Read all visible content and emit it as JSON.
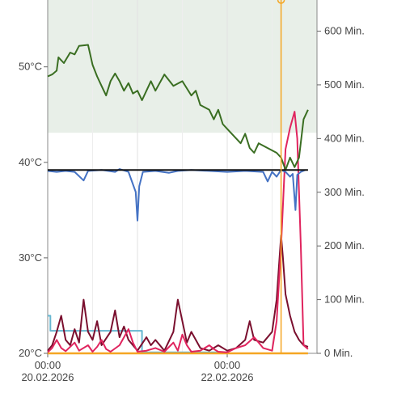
{
  "chart_data": {
    "type": "line",
    "left_axis": {
      "unit": "°C",
      "ylim": [
        20,
        57
      ],
      "ticks": [
        20,
        30,
        40,
        50
      ],
      "tick_labels": [
        "20°C",
        "30°C",
        "40°C",
        "50°C"
      ]
    },
    "right_axis": {
      "unit": "Min.",
      "ylim": [
        0,
        658
      ],
      "ticks": [
        0,
        100,
        200,
        300,
        400,
        500,
        600
      ],
      "tick_labels": [
        "0 Min.",
        "100 Min.",
        "200 Min.",
        "300 Min.",
        "400 Min.",
        "500 Min.",
        "600 Min."
      ]
    },
    "x_axis": {
      "range_days": [
        0,
        3
      ],
      "ticks": [
        0,
        2
      ],
      "tick_labels": [
        [
          "00:00",
          "20.02.2026"
        ],
        [
          "00:00",
          "22.02.2026"
        ]
      ]
    },
    "grid": true,
    "shaded_band": {
      "axis": "left",
      "from": 43.1,
      "to": 57,
      "color": "#e8efe8"
    },
    "reference_line": {
      "axis": "left",
      "value": 39.2,
      "color": "#111111"
    },
    "current_time_marker": {
      "x": 2.6,
      "color": "#f5a623"
    },
    "colors": {
      "temperature": "#4472c4",
      "green_series": "#3a6e22",
      "crimson_series": "#e0245e",
      "maroon_series": "#7a0f2e",
      "light_blue_series": "#67b7d1",
      "orange_series": "#f5a623"
    },
    "series": [
      {
        "axis": "left",
        "color_key": "temperature",
        "points": [
          [
            0,
            39.1
          ],
          [
            0.1,
            39.0
          ],
          [
            0.2,
            39.1
          ],
          [
            0.3,
            39.0
          ],
          [
            0.4,
            38.1
          ],
          [
            0.45,
            39.1
          ],
          [
            0.6,
            39.2
          ],
          [
            0.75,
            39.0
          ],
          [
            0.8,
            39.3
          ],
          [
            0.9,
            39.0
          ],
          [
            0.98,
            36.9
          ],
          [
            1.0,
            33.9
          ],
          [
            1.02,
            37.5
          ],
          [
            1.06,
            39.0
          ],
          [
            1.2,
            39.1
          ],
          [
            1.35,
            38.9
          ],
          [
            1.45,
            39.1
          ],
          [
            1.6,
            39.2
          ],
          [
            1.8,
            39.1
          ],
          [
            2.0,
            39.0
          ],
          [
            2.2,
            39.1
          ],
          [
            2.4,
            39.0
          ],
          [
            2.45,
            38.0
          ],
          [
            2.5,
            39.0
          ],
          [
            2.55,
            38.5
          ],
          [
            2.6,
            39.2
          ],
          [
            2.65,
            39.0
          ],
          [
            2.7,
            38.5
          ],
          [
            2.73,
            38.8
          ],
          [
            2.76,
            35.0
          ],
          [
            2.78,
            38.7
          ],
          [
            2.82,
            39.0
          ],
          [
            2.87,
            39.2
          ]
        ]
      },
      {
        "axis": "left",
        "color_key": "green_series",
        "points": [
          [
            0,
            49.0
          ],
          [
            0.05,
            49.2
          ],
          [
            0.1,
            49.6
          ],
          [
            0.12,
            51.0
          ],
          [
            0.18,
            50.4
          ],
          [
            0.25,
            51.5
          ],
          [
            0.3,
            51.3
          ],
          [
            0.35,
            52.2
          ],
          [
            0.45,
            52.3
          ],
          [
            0.5,
            50.2
          ],
          [
            0.55,
            49.0
          ],
          [
            0.6,
            48.0
          ],
          [
            0.65,
            47.0
          ],
          [
            0.7,
            48.5
          ],
          [
            0.75,
            49.3
          ],
          [
            0.8,
            48.5
          ],
          [
            0.85,
            47.5
          ],
          [
            0.9,
            48.3
          ],
          [
            0.95,
            47.2
          ],
          [
            1.0,
            47.5
          ],
          [
            1.05,
            46.5
          ],
          [
            1.1,
            47.5
          ],
          [
            1.15,
            48.5
          ],
          [
            1.2,
            47.5
          ],
          [
            1.3,
            49.2
          ],
          [
            1.4,
            48.0
          ],
          [
            1.5,
            48.5
          ],
          [
            1.6,
            47.0
          ],
          [
            1.65,
            47.5
          ],
          [
            1.7,
            46.0
          ],
          [
            1.8,
            45.5
          ],
          [
            1.85,
            44.5
          ],
          [
            1.9,
            45.5
          ],
          [
            1.95,
            44.0
          ],
          [
            2.0,
            43.5
          ],
          [
            2.1,
            42.5
          ],
          [
            2.15,
            42.0
          ],
          [
            2.2,
            43.0
          ],
          [
            2.25,
            41.5
          ],
          [
            2.3,
            41.0
          ],
          [
            2.35,
            42.0
          ],
          [
            2.45,
            41.5
          ],
          [
            2.55,
            41.0
          ],
          [
            2.6,
            40.5
          ],
          [
            2.65,
            39.2
          ],
          [
            2.7,
            40.5
          ],
          [
            2.75,
            39.5
          ],
          [
            2.8,
            40.5
          ],
          [
            2.85,
            44.5
          ],
          [
            2.9,
            45.5
          ]
        ]
      },
      {
        "axis": "right",
        "color_key": "crimson_series",
        "points": [
          [
            0,
            2
          ],
          [
            0.05,
            10
          ],
          [
            0.1,
            25
          ],
          [
            0.15,
            10
          ],
          [
            0.2,
            4
          ],
          [
            0.3,
            20
          ],
          [
            0.35,
            5
          ],
          [
            0.45,
            15
          ],
          [
            0.5,
            3
          ],
          [
            0.55,
            12
          ],
          [
            0.6,
            25
          ],
          [
            0.65,
            8
          ],
          [
            0.7,
            3
          ],
          [
            0.8,
            15
          ],
          [
            0.9,
            45
          ],
          [
            0.95,
            20
          ],
          [
            1.0,
            3
          ],
          [
            1.1,
            5
          ],
          [
            1.2,
            10
          ],
          [
            1.3,
            3
          ],
          [
            1.4,
            20
          ],
          [
            1.45,
            5
          ],
          [
            1.5,
            35
          ],
          [
            1.55,
            15
          ],
          [
            1.6,
            3
          ],
          [
            1.7,
            5
          ],
          [
            1.8,
            15
          ],
          [
            1.85,
            8
          ],
          [
            1.9,
            3
          ],
          [
            2.0,
            2
          ],
          [
            2.1,
            10
          ],
          [
            2.2,
            15
          ],
          [
            2.3,
            30
          ],
          [
            2.35,
            20
          ],
          [
            2.4,
            10
          ],
          [
            2.5,
            5
          ],
          [
            2.55,
            60
          ],
          [
            2.6,
            200
          ],
          [
            2.65,
            380
          ],
          [
            2.7,
            420
          ],
          [
            2.75,
            450
          ],
          [
            2.78,
            400
          ],
          [
            2.82,
            200
          ],
          [
            2.85,
            15
          ],
          [
            2.9,
            8
          ]
        ]
      },
      {
        "axis": "right",
        "color_key": "maroon_series",
        "points": [
          [
            0,
            5
          ],
          [
            0.05,
            15
          ],
          [
            0.1,
            40
          ],
          [
            0.15,
            70
          ],
          [
            0.2,
            25
          ],
          [
            0.25,
            15
          ],
          [
            0.3,
            45
          ],
          [
            0.35,
            20
          ],
          [
            0.4,
            100
          ],
          [
            0.45,
            40
          ],
          [
            0.5,
            25
          ],
          [
            0.55,
            60
          ],
          [
            0.6,
            15
          ],
          [
            0.7,
            40
          ],
          [
            0.75,
            80
          ],
          [
            0.8,
            30
          ],
          [
            0.85,
            50
          ],
          [
            0.9,
            25
          ],
          [
            1.0,
            5
          ],
          [
            1.1,
            30
          ],
          [
            1.15,
            15
          ],
          [
            1.2,
            25
          ],
          [
            1.3,
            5
          ],
          [
            1.4,
            40
          ],
          [
            1.45,
            100
          ],
          [
            1.5,
            60
          ],
          [
            1.55,
            20
          ],
          [
            1.6,
            40
          ],
          [
            1.7,
            10
          ],
          [
            1.8,
            5
          ],
          [
            1.9,
            15
          ],
          [
            2.0,
            5
          ],
          [
            2.1,
            10
          ],
          [
            2.2,
            25
          ],
          [
            2.25,
            60
          ],
          [
            2.3,
            25
          ],
          [
            2.4,
            20
          ],
          [
            2.5,
            40
          ],
          [
            2.55,
            100
          ],
          [
            2.6,
            220
          ],
          [
            2.62,
            180
          ],
          [
            2.65,
            110
          ],
          [
            2.7,
            70
          ],
          [
            2.75,
            40
          ],
          [
            2.8,
            25
          ],
          [
            2.85,
            15
          ],
          [
            2.9,
            12
          ]
        ]
      },
      {
        "axis": "right",
        "color_key": "light_blue_series",
        "points": [
          [
            0,
            70
          ],
          [
            0.03,
            70
          ],
          [
            0.03,
            42
          ],
          [
            1.05,
            42
          ],
          [
            1.05,
            2
          ],
          [
            2.0,
            2
          ]
        ]
      },
      {
        "axis": "right",
        "color_key": "orange_series",
        "points": [
          [
            0,
            0
          ],
          [
            2.9,
            0
          ]
        ]
      }
    ]
  }
}
